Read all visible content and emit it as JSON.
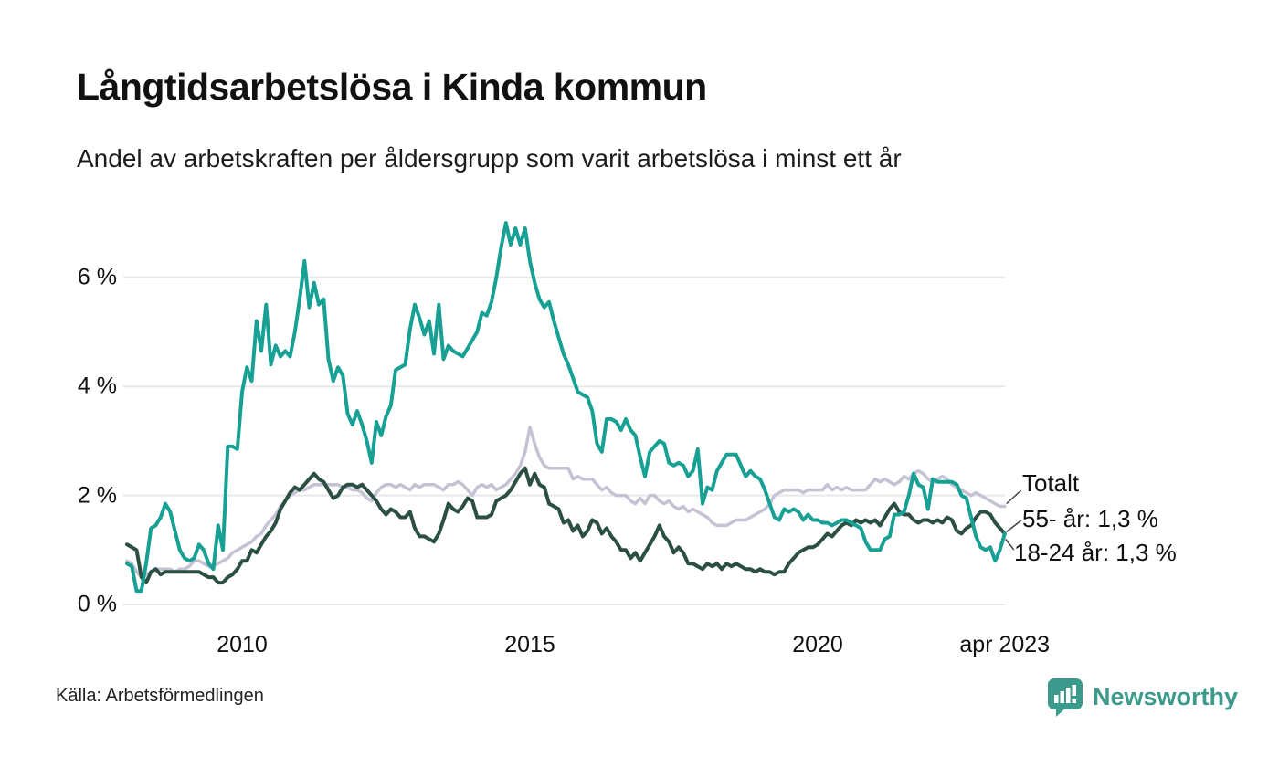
{
  "header": {
    "title": "Långtidsarbetslösa i Kinda kommun",
    "subtitle": "Andel av arbetskraften per åldersgrupp som varit arbetslösa i minst ett år"
  },
  "footer": {
    "source": "Källa: Arbetsförmedlingen",
    "brand": "Newsworthy"
  },
  "colors": {
    "teal_line": "#17a094",
    "dark_green_line": "#2c4f43",
    "gray_line": "#c5c3d3",
    "gridline": "#e8e8ea",
    "leader": "#444444",
    "brand_teal": "#3c9a8d",
    "background": "#ffffff"
  },
  "chart_data": {
    "type": "line",
    "title": "Långtidsarbetslösa i Kinda kommun",
    "subtitle": "Andel av arbetskraften per åldersgrupp som varit arbetslösa i minst ett år",
    "unit": "% av arbetskraften",
    "frequency": "monthly",
    "x_start": "2008-01",
    "x_end": "2023-04",
    "ylim": [
      0,
      7.2
    ],
    "grid": "horizontal",
    "y_ticks": [
      {
        "value": 0,
        "label": "0 %"
      },
      {
        "value": 2,
        "label": "2 %"
      },
      {
        "value": 4,
        "label": "4 %"
      },
      {
        "value": 6,
        "label": "6 %"
      }
    ],
    "x_ticks": [
      {
        "year": 2010,
        "label": "2010"
      },
      {
        "year": 2015,
        "label": "2015"
      },
      {
        "year": 2020,
        "label": "2020"
      },
      {
        "year": 2023.25,
        "label": "apr 2023"
      }
    ],
    "series": [
      {
        "name": "Totalt",
        "end_label": "Totalt",
        "color": "#c5c3d3",
        "stroke_width": 3.5,
        "last_value": 1.8,
        "values": [
          0.8,
          0.75,
          0.6,
          0.5,
          0.55,
          0.6,
          0.65,
          0.65,
          0.65,
          0.65,
          0.6,
          0.65,
          0.65,
          0.7,
          0.8,
          0.8,
          0.75,
          0.7,
          0.7,
          0.75,
          0.8,
          0.85,
          0.95,
          1.0,
          1.05,
          1.1,
          1.15,
          1.25,
          1.3,
          1.45,
          1.55,
          1.65,
          1.8,
          1.9,
          2.0,
          2.05,
          2.1,
          2.1,
          2.15,
          2.2,
          2.2,
          2.2,
          2.2,
          2.2,
          2.2,
          2.15,
          2.15,
          2.1,
          2.1,
          2.05,
          1.95,
          1.9,
          2.05,
          2.15,
          2.2,
          2.2,
          2.15,
          2.2,
          2.15,
          2.1,
          2.2,
          2.15,
          2.2,
          2.2,
          2.2,
          2.15,
          2.1,
          2.2,
          2.2,
          2.25,
          2.2,
          2.1,
          2.0,
          2.15,
          2.2,
          2.15,
          2.2,
          2.1,
          2.15,
          2.2,
          2.3,
          2.4,
          2.55,
          2.8,
          3.25,
          2.95,
          2.7,
          2.55,
          2.5,
          2.5,
          2.5,
          2.5,
          2.5,
          2.3,
          2.35,
          2.3,
          2.3,
          2.3,
          2.2,
          2.1,
          2.15,
          2.05,
          2.0,
          2.0,
          2.0,
          1.9,
          1.85,
          1.95,
          1.85,
          2.0,
          2.0,
          1.9,
          1.85,
          1.9,
          1.8,
          1.75,
          1.8,
          1.7,
          1.75,
          1.7,
          1.65,
          1.6,
          1.5,
          1.45,
          1.45,
          1.45,
          1.5,
          1.55,
          1.55,
          1.55,
          1.6,
          1.65,
          1.7,
          1.75,
          1.85,
          2.0,
          2.05,
          2.1,
          2.1,
          2.1,
          2.1,
          2.05,
          2.1,
          2.1,
          2.1,
          2.1,
          2.2,
          2.1,
          2.15,
          2.1,
          2.15,
          2.1,
          2.1,
          2.1,
          2.1,
          2.2,
          2.3,
          2.25,
          2.3,
          2.25,
          2.2,
          2.25,
          2.35,
          2.3,
          2.4,
          2.45,
          2.4,
          2.3,
          2.25,
          2.3,
          2.35,
          2.3,
          2.2,
          2.15,
          2.1,
          2.05,
          2.0,
          2.05,
          2.0,
          1.95,
          1.9,
          1.85,
          1.8,
          1.8
        ]
      },
      {
        "name": "55- år",
        "end_label": "55- år: 1,3 %",
        "color": "#2c4f43",
        "stroke_width": 4,
        "last_value": 1.3,
        "values": [
          1.1,
          1.05,
          1.0,
          0.5,
          0.4,
          0.6,
          0.65,
          0.55,
          0.6,
          0.6,
          0.6,
          0.6,
          0.6,
          0.6,
          0.6,
          0.6,
          0.55,
          0.5,
          0.5,
          0.4,
          0.4,
          0.5,
          0.55,
          0.65,
          0.8,
          0.8,
          1.0,
          0.95,
          1.1,
          1.25,
          1.35,
          1.5,
          1.75,
          1.9,
          2.05,
          2.15,
          2.1,
          2.2,
          2.3,
          2.4,
          2.3,
          2.25,
          2.1,
          1.95,
          2.0,
          2.15,
          2.2,
          2.2,
          2.15,
          2.2,
          2.1,
          2.0,
          1.9,
          1.75,
          1.65,
          1.75,
          1.7,
          1.6,
          1.6,
          1.7,
          1.4,
          1.25,
          1.25,
          1.2,
          1.15,
          1.3,
          1.55,
          1.85,
          1.75,
          1.7,
          1.8,
          1.95,
          1.9,
          1.6,
          1.6,
          1.6,
          1.65,
          1.9,
          1.95,
          2.0,
          2.1,
          2.25,
          2.4,
          2.5,
          2.2,
          2.4,
          2.2,
          2.15,
          1.85,
          1.8,
          1.75,
          1.5,
          1.55,
          1.35,
          1.45,
          1.25,
          1.35,
          1.55,
          1.5,
          1.3,
          1.4,
          1.25,
          1.15,
          1.0,
          1.0,
          0.85,
          0.95,
          0.8,
          0.95,
          1.1,
          1.25,
          1.45,
          1.25,
          1.15,
          0.95,
          1.05,
          0.95,
          0.75,
          0.75,
          0.7,
          0.65,
          0.75,
          0.7,
          0.75,
          0.65,
          0.75,
          0.7,
          0.75,
          0.7,
          0.65,
          0.65,
          0.6,
          0.65,
          0.6,
          0.6,
          0.55,
          0.6,
          0.6,
          0.75,
          0.85,
          0.95,
          1.0,
          1.05,
          1.05,
          1.1,
          1.2,
          1.3,
          1.25,
          1.35,
          1.45,
          1.5,
          1.45,
          1.55,
          1.5,
          1.55,
          1.5,
          1.55,
          1.45,
          1.6,
          1.75,
          1.85,
          1.7,
          1.65,
          1.65,
          1.55,
          1.5,
          1.55,
          1.55,
          1.5,
          1.55,
          1.5,
          1.6,
          1.55,
          1.35,
          1.3,
          1.4,
          1.45,
          1.6,
          1.7,
          1.7,
          1.65,
          1.5,
          1.4,
          1.3
        ]
      },
      {
        "name": "18-24 år",
        "end_label": "18-24 år: 1,3 %",
        "color": "#17a094",
        "stroke_width": 4,
        "last_value": 1.3,
        "values": [
          0.75,
          0.7,
          0.25,
          0.25,
          0.75,
          1.4,
          1.45,
          1.6,
          1.85,
          1.7,
          1.35,
          1.0,
          0.85,
          0.8,
          0.85,
          1.1,
          1.0,
          0.75,
          0.65,
          1.45,
          1.0,
          2.9,
          2.9,
          2.85,
          3.9,
          4.35,
          4.1,
          5.2,
          4.65,
          5.5,
          4.4,
          4.75,
          4.55,
          4.65,
          4.55,
          5.0,
          5.6,
          6.3,
          5.45,
          5.9,
          5.5,
          5.6,
          4.5,
          4.1,
          4.35,
          4.2,
          3.5,
          3.3,
          3.55,
          3.3,
          3.0,
          2.6,
          3.35,
          3.1,
          3.45,
          3.65,
          4.3,
          4.35,
          4.4,
          5.05,
          5.5,
          5.25,
          4.95,
          5.2,
          4.6,
          5.5,
          4.5,
          4.75,
          4.65,
          4.6,
          4.55,
          4.7,
          4.85,
          5.0,
          5.35,
          5.3,
          5.55,
          6.0,
          6.55,
          7.0,
          6.6,
          6.9,
          6.6,
          6.9,
          6.3,
          5.9,
          5.6,
          5.45,
          5.55,
          5.2,
          4.9,
          4.6,
          4.4,
          4.15,
          3.9,
          3.85,
          3.8,
          3.55,
          2.95,
          2.8,
          3.4,
          3.4,
          3.35,
          3.2,
          3.4,
          3.2,
          3.1,
          2.7,
          2.35,
          2.8,
          2.9,
          3.0,
          2.95,
          2.6,
          2.55,
          2.6,
          2.55,
          2.35,
          2.45,
          2.85,
          1.85,
          2.15,
          2.1,
          2.45,
          2.6,
          2.75,
          2.75,
          2.75,
          2.55,
          2.35,
          2.45,
          2.35,
          2.3,
          2.1,
          1.85,
          1.6,
          1.55,
          1.75,
          1.7,
          1.75,
          1.7,
          1.55,
          1.65,
          1.55,
          1.55,
          1.5,
          1.5,
          1.45,
          1.5,
          1.55,
          1.55,
          1.5,
          1.45,
          1.4,
          1.15,
          1.0,
          1.0,
          1.0,
          1.2,
          1.25,
          1.65,
          1.65,
          1.7,
          2.0,
          2.4,
          2.2,
          2.15,
          1.75,
          2.3,
          2.25,
          2.25,
          2.25,
          2.25,
          2.2,
          2.0,
          1.95,
          1.6,
          1.25,
          1.05,
          1.0,
          1.05,
          0.8,
          1.0,
          1.3
        ]
      }
    ]
  }
}
